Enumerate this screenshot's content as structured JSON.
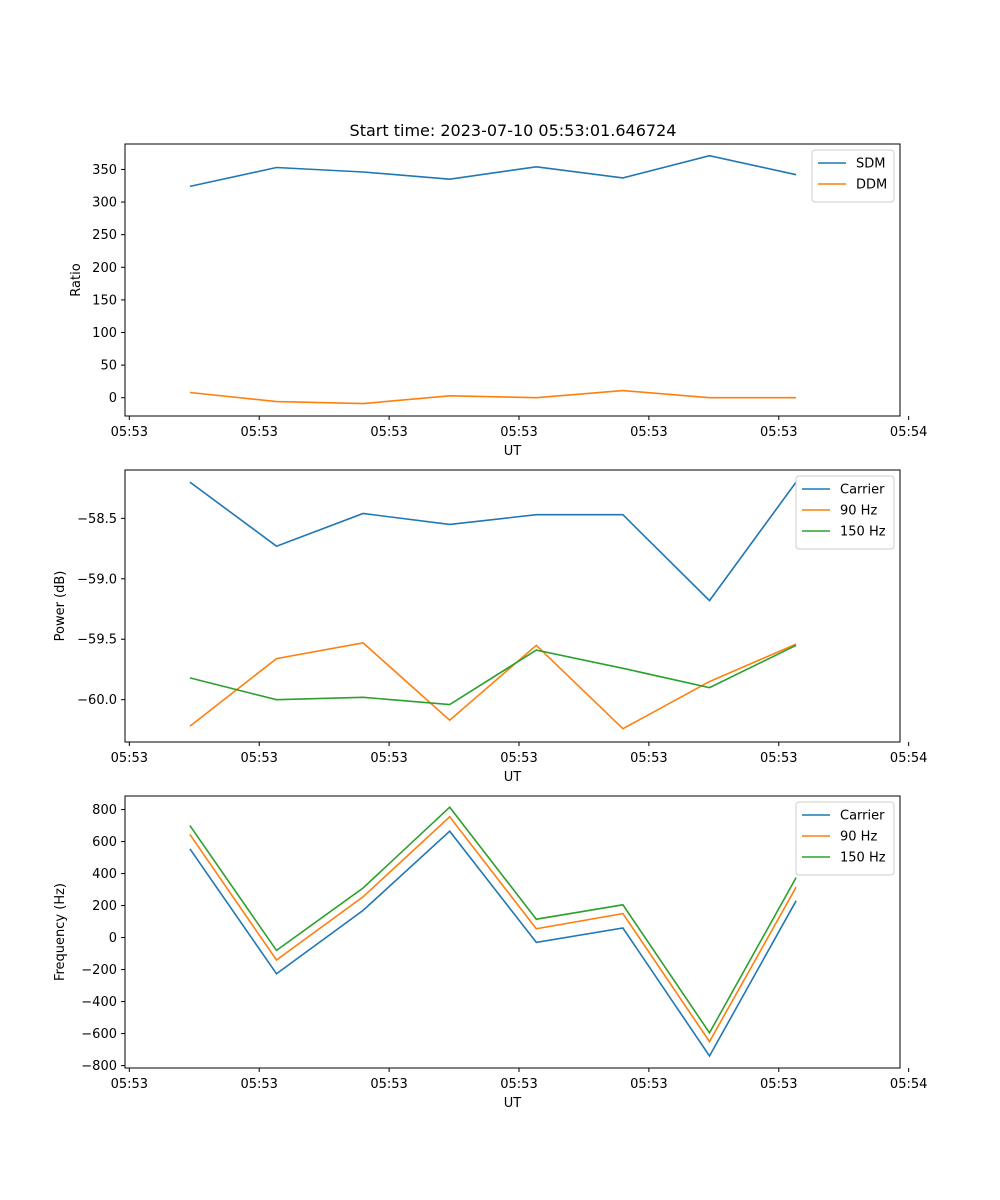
{
  "chart_data": {
    "title": "Start time: 2023-07-10 05:53:01.646724",
    "x_positions": [
      0,
      1,
      2,
      3,
      4,
      5,
      6,
      7
    ],
    "x_range": [
      -0.75,
      8.2
    ],
    "x_tick_positions": [
      -0.7,
      0.8,
      2.3,
      3.8,
      5.3,
      6.8,
      8.3
    ],
    "x_tick_labels": [
      "05:53",
      "05:53",
      "05:53",
      "05:53",
      "05:53",
      "05:53",
      "05:54"
    ],
    "panels": [
      {
        "type": "line",
        "xlabel": "UT",
        "ylabel": "Ratio",
        "ylim": [
          -28,
          389
        ],
        "yticks": [
          0,
          50,
          100,
          150,
          200,
          250,
          300,
          350
        ],
        "ytick_labels": [
          "0",
          "50",
          "100",
          "150",
          "200",
          "250",
          "300",
          "350"
        ],
        "legend": "top-right",
        "series": [
          {
            "name": "SDM",
            "color": "#1f77b4",
            "values": [
              324,
              353,
              346,
              335,
              354,
              337,
              371,
              342
            ]
          },
          {
            "name": "DDM",
            "color": "#ff7f0e",
            "values": [
              8,
              -6,
              -9,
              3,
              0,
              11,
              0,
              0
            ]
          }
        ]
      },
      {
        "type": "line",
        "xlabel": "UT",
        "ylabel": "Power (dB)",
        "ylim": [
          -60.35,
          -58.1
        ],
        "yticks": [
          -60.0,
          -59.5,
          -59.0,
          -58.5
        ],
        "ytick_labels": [
          "−60.0",
          "−59.5",
          "−59.0",
          "−58.5"
        ],
        "legend": "top-right",
        "series": [
          {
            "name": "Carrier",
            "color": "#1f77b4",
            "values": [
              -58.2,
              -58.73,
              -58.46,
              -58.55,
              -58.47,
              -58.47,
              -59.18,
              -58.2
            ]
          },
          {
            "name": "90 Hz",
            "color": "#ff7f0e",
            "values": [
              -60.22,
              -59.66,
              -59.53,
              -60.17,
              -59.55,
              -60.24,
              -59.85,
              -59.54
            ]
          },
          {
            "name": "150 Hz",
            "color": "#2ca02c",
            "values": [
              -59.82,
              -60.0,
              -59.98,
              -60.04,
              -59.59,
              -59.74,
              -59.9,
              -59.55
            ]
          }
        ]
      },
      {
        "type": "line",
        "xlabel": "UT",
        "ylabel": "Frequency (Hz)",
        "ylim": [
          -815,
          885
        ],
        "yticks": [
          -800,
          -600,
          -400,
          -200,
          0,
          200,
          400,
          600,
          800
        ],
        "ytick_labels": [
          "−800",
          "−600",
          "−400",
          "−200",
          "0",
          "200",
          "400",
          "600",
          "800"
        ],
        "legend": "top-right",
        "series": [
          {
            "name": "Carrier",
            "color": "#1f77b4",
            "values": [
              555,
              -226,
              170,
              665,
              -30,
              60,
              -740,
              230
            ]
          },
          {
            "name": "90 Hz",
            "color": "#ff7f0e",
            "values": [
              645,
              -140,
              255,
              755,
              55,
              150,
              -650,
              315
            ]
          },
          {
            "name": "150 Hz",
            "color": "#2ca02c",
            "values": [
              700,
              -80,
              310,
              815,
              115,
              205,
              -595,
              375
            ]
          }
        ]
      }
    ]
  }
}
